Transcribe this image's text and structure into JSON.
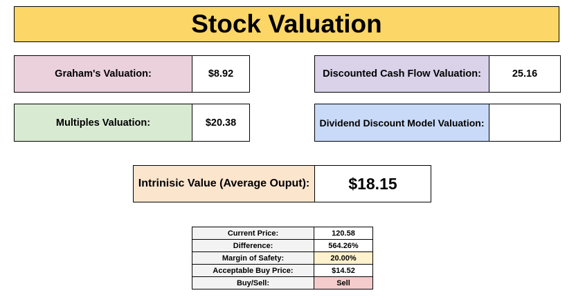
{
  "title": "Stock Valuation",
  "valuations": {
    "graham": {
      "label": "Graham's Valuation:",
      "value": "$8.92"
    },
    "dcf": {
      "label": "Discounted Cash Flow Valuation:",
      "value": "25.16"
    },
    "multiples": {
      "label": "Multiples Valuation:",
      "value": "$20.38"
    },
    "ddm": {
      "label": "Dividend Discount Model Valuation:",
      "value": ""
    }
  },
  "intrinsic": {
    "label": "Intrinisic Value (Average Ouput):",
    "value": "$18.15"
  },
  "summary": {
    "current_price": {
      "label": "Current Price:",
      "value": "120.58"
    },
    "difference": {
      "label": "Difference:",
      "value": "564.26%"
    },
    "margin_of_safety": {
      "label": "Margin of Safety:",
      "value": "20.00%"
    },
    "acceptable_buy_price": {
      "label": "Acceptable Buy Price:",
      "value": "$14.52"
    },
    "buy_sell": {
      "label": "Buy/Sell:",
      "value": "Sell"
    }
  },
  "colors": {
    "banner": "#fcd667",
    "graham": "#ead1dc",
    "dcf": "#d9d2e9",
    "multiples": "#d9ead3",
    "ddm": "#c9daf8",
    "intrinsic": "#fce5cd",
    "margin_of_safety": "#fff2cc",
    "sell": "#f4cccc"
  }
}
